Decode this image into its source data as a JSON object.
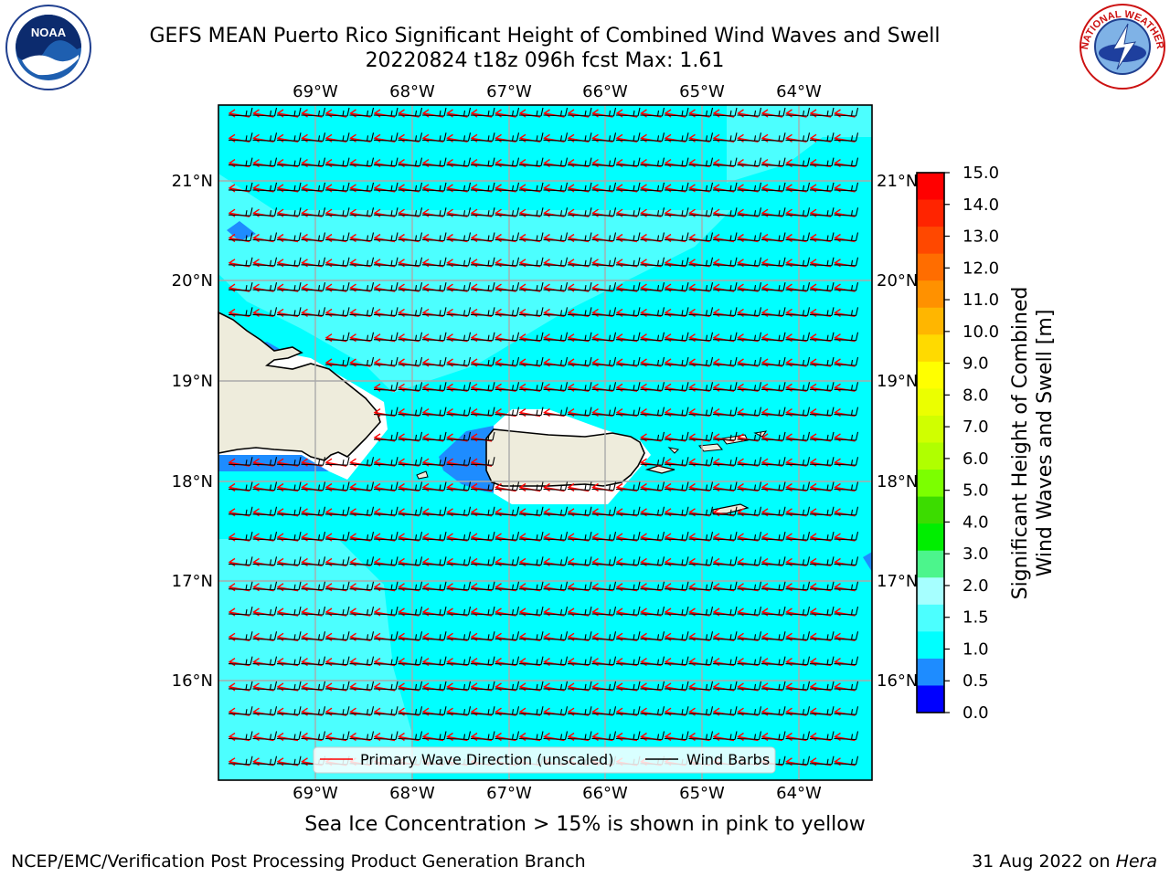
{
  "title": {
    "line1": "GEFS MEAN Puerto Rico Significant Height of Combined Wind Waves and Swell",
    "line2": "20220824 t18z 096h fcst   Max: 1.61"
  },
  "logos": {
    "left": {
      "icon": "noaa-logo",
      "text": "NOAA"
    },
    "right": {
      "icon": "national-weather-service-logo",
      "text": "NATIONAL WEATHER SERVICE"
    }
  },
  "map": {
    "lon_labels": [
      "69°W",
      "68°W",
      "67°W",
      "66°W",
      "65°W",
      "64°W"
    ],
    "lat_labels": [
      "21°N",
      "20°N",
      "19°N",
      "18°N",
      "17°N",
      "16°N"
    ],
    "legend": {
      "wave_label": "Primary Wave Direction (unscaled)",
      "barb_label": "Wind Barbs",
      "wave_color": "#ff0000",
      "barb_color": "#000000"
    },
    "colors": {
      "land": "#eeecdc",
      "sea_1_1_5": "#00ffff",
      "sea_1_5_2": "#4cffff",
      "sea_2_3": "#a6ffff",
      "sea_0_5_1": "#1e8cff"
    }
  },
  "colorbar": {
    "label_line1": "Significant Height of Combined",
    "label_line2": "Wind Waves and Swell [m]",
    "ticks": [
      "15.0",
      "14.0",
      "13.0",
      "12.0",
      "11.0",
      "10.0",
      "9.0",
      "8.0",
      "7.0",
      "6.0",
      "5.0",
      "4.0",
      "3.0",
      "2.0",
      "1.5",
      "1.0",
      "0.5",
      "0.0"
    ],
    "colors_top_to_bottom": [
      "#ff0000",
      "#ff2400",
      "#ff4800",
      "#ff6d00",
      "#ff9100",
      "#ffb600",
      "#ffda00",
      "#ffff00",
      "#ebff00",
      "#d0ff00",
      "#b0ff00",
      "#7cff00",
      "#3cdc00",
      "#00ee00",
      "#4cf58c",
      "#a6ffff",
      "#4cffff",
      "#00ffff",
      "#1e8cff",
      "#0000ff"
    ]
  },
  "sea_ice_note": "Sea Ice Concentration > 15% is shown in pink to yellow",
  "footer": {
    "left": "NCEP/EMC/Verification Post Processing Product Generation Branch",
    "right_prefix": "31 Aug 2022 on ",
    "right_host": "Hera"
  }
}
